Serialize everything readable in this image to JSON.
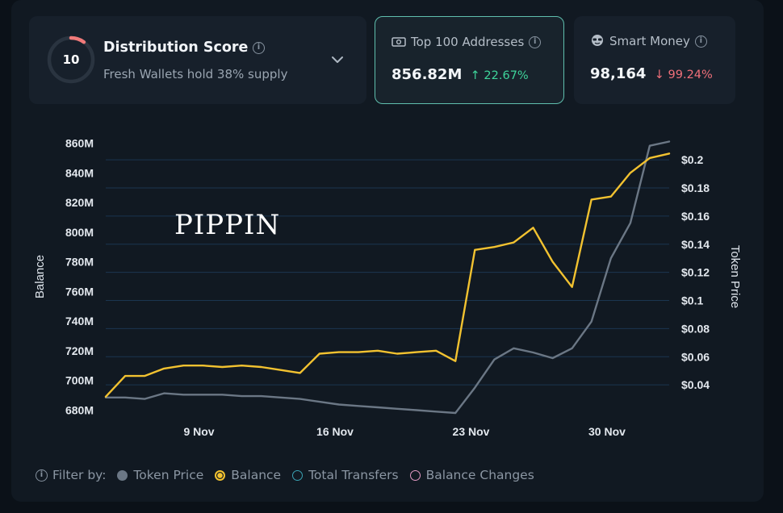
{
  "distribution": {
    "score": "10",
    "title": "Distribution Score",
    "subtitle": "Fresh Wallets hold 38% supply",
    "score_fraction": 0.1,
    "ring_color": "#f07a7a"
  },
  "top100": {
    "label": "Top 100 Addresses",
    "value": "856.82M",
    "change": "22.67%",
    "direction": "up"
  },
  "smart_money": {
    "label": "Smart Money",
    "value": "98,164",
    "change": "99.24%",
    "direction": "down"
  },
  "filter": {
    "label": "Filter by:",
    "items": [
      {
        "label": "Token Price",
        "color": "#6b7785",
        "style": "filled"
      },
      {
        "label": "Balance",
        "color": "#f2c230",
        "style": "ring-filled"
      },
      {
        "label": "Total Transfers",
        "color": "#3aa3b4",
        "style": "ring"
      },
      {
        "label": "Balance Changes",
        "color": "#e39ac4",
        "style": "ring"
      }
    ]
  },
  "chart_data": {
    "type": "line",
    "annotation": "PIPPIN",
    "ylabel": "Balance",
    "y2label": "Token Price",
    "x_ticks": [
      "9 Nov",
      "16 Nov",
      "23 Nov",
      "30 Nov"
    ],
    "x_tick_index": [
      4.8,
      11.8,
      18.8,
      25.8
    ],
    "y_ticks": [
      "680M",
      "700M",
      "720M",
      "740M",
      "760M",
      "780M",
      "800M",
      "820M",
      "840M",
      "860M"
    ],
    "y_tick_values": [
      680,
      700,
      720,
      740,
      760,
      780,
      800,
      820,
      840,
      860
    ],
    "y2_ticks": [
      "$0.04",
      "$0.06",
      "$0.08",
      "$0.1",
      "$0.12",
      "$0.14",
      "$0.16",
      "$0.18",
      "$0.2"
    ],
    "y2_tick_values": [
      0.04,
      0.06,
      0.08,
      0.1,
      0.12,
      0.14,
      0.16,
      0.18,
      0.2
    ],
    "ylim": [
      678,
      863
    ],
    "y2lim": [
      0.02,
      0.215
    ],
    "grid": true,
    "series": [
      {
        "name": "Balance",
        "axis": "left",
        "color": "#f2c230",
        "values": [
          689,
          703,
          703,
          708,
          710,
          710,
          709,
          710,
          709,
          707,
          705,
          718,
          719,
          719,
          720,
          718,
          719,
          720,
          713,
          788,
          790,
          793,
          803,
          780,
          763,
          822,
          824,
          840,
          850,
          853
        ]
      },
      {
        "name": "Token Price",
        "axis": "right",
        "color": "#6b7785",
        "values": [
          0.031,
          0.031,
          0.03,
          0.034,
          0.033,
          0.033,
          0.033,
          0.032,
          0.032,
          0.031,
          0.03,
          0.028,
          0.026,
          0.025,
          0.024,
          0.023,
          0.022,
          0.021,
          0.02,
          0.038,
          0.058,
          0.066,
          0.063,
          0.059,
          0.066,
          0.085,
          0.13,
          0.155,
          0.21,
          0.213
        ]
      }
    ]
  }
}
